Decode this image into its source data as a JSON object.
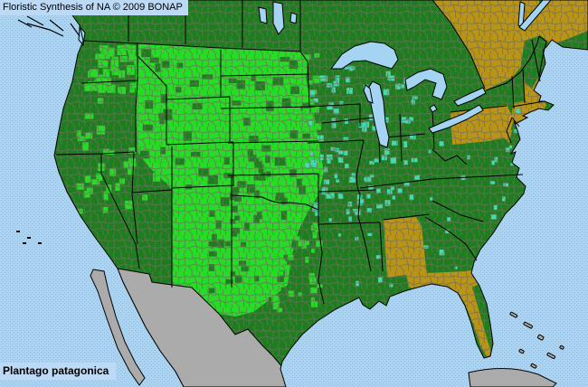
{
  "header": {
    "title": "Floristic Synthesis of NA © 2009 BONAP"
  },
  "footer": {
    "species_label": "Plantago patagonica"
  },
  "map": {
    "colors": {
      "ocean": "#abd4f2",
      "ocean_dot": "#8bbde4",
      "panel_bg": "#bcd9f6",
      "state_present_green": "#1e7d1e",
      "county_present_bright_green": "#25DD25",
      "county_adventive_teal": "#42dcad",
      "state_absent_gold": "#ba9414",
      "outside_range_gray": "#ababab",
      "inland_water": "#a4d4f2",
      "county_line": "#6f6f60",
      "state_line": "#000000"
    },
    "regions": {
      "base_landmass": "state_present_green",
      "great_plains_block": "county_present_bright_green",
      "mexico": "outside_range_gray",
      "cuba_bahamas": "outside_range_gray",
      "quebec": "state_absent_gold",
      "northeast_corner": "state_absent_gold",
      "new_hampshire": "state_absent_gold",
      "massachusetts_connecticut": "state_absent_gold",
      "pennsylvania": "state_absent_gold",
      "alabama": "state_absent_gold",
      "florida": "state_absent_gold"
    },
    "speckle_regions": [
      {
        "name": "pacific-northwest-bright",
        "color": "county_present_bright_green",
        "count": 30,
        "min": 5,
        "max": 11,
        "layer": "a"
      },
      {
        "name": "west-interior-bright",
        "color": "county_present_bright_green",
        "count": 52,
        "min": 5,
        "max": 10,
        "layer": "a"
      },
      {
        "name": "north-plains-dark",
        "color": "state_present_green",
        "count": 58,
        "min": 5,
        "max": 12,
        "layer": "a"
      },
      {
        "name": "south-plains-dark",
        "color": "state_present_green",
        "count": 48,
        "min": 5,
        "max": 10,
        "layer": "a"
      },
      {
        "name": "texas-east-bright",
        "color": "county_present_bright_green",
        "count": 32,
        "min": 4,
        "max": 8,
        "layer": "a"
      },
      {
        "name": "minnesota-bright",
        "color": "county_present_bright_green",
        "count": 18,
        "min": 4,
        "max": 9,
        "layer": "a"
      },
      {
        "name": "midwest-teal",
        "color": "county_adventive_teal",
        "count": 95,
        "min": 4,
        "max": 7,
        "layer": "a"
      },
      {
        "name": "south-central-teal",
        "color": "county_adventive_teal",
        "count": 26,
        "min": 3,
        "max": 6,
        "layer": "a"
      },
      {
        "name": "southeast-teal",
        "color": "county_adventive_teal",
        "count": 14,
        "min": 3,
        "max": 6,
        "layer": "a"
      },
      {
        "name": "seaboard-teal",
        "color": "county_adventive_teal",
        "count": 8,
        "min": 3,
        "max": 5,
        "layer": "b"
      }
    ]
  }
}
